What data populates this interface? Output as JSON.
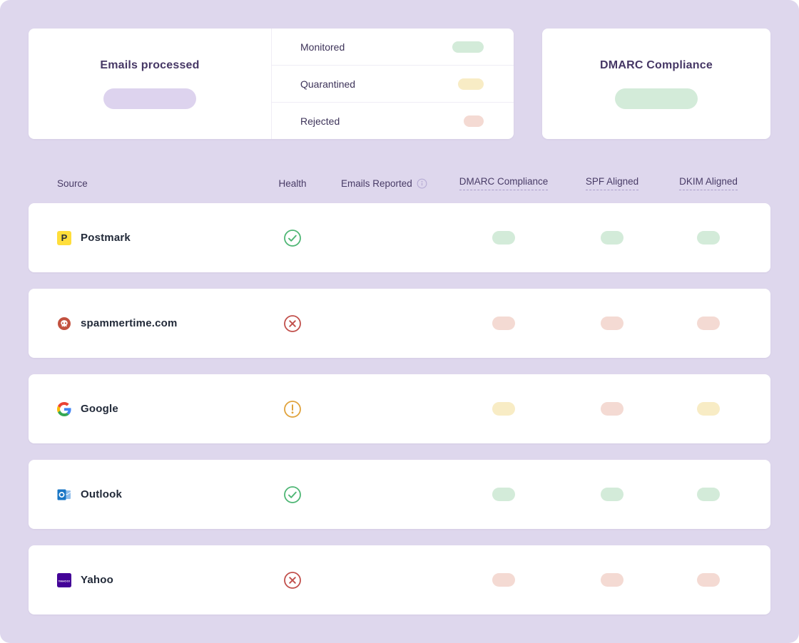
{
  "colors": {
    "background": "#ded7ed",
    "card_background": "#ffffff",
    "title_text": "#463765",
    "header_text": "#483b66",
    "source_text": "#222a39",
    "skeleton_purple": "#ddd3ee",
    "skeleton_green": "#d3ebd9",
    "skeleton_yellow": "#f8ecc5",
    "skeleton_red": "#f4dad3",
    "health_pass": "#4eb674",
    "health_fail": "#c14f4b",
    "health_warn": "#e0a23b"
  },
  "summary": {
    "emails_processed_title": "Emails processed",
    "emails_processed_value": {
      "skeleton": true,
      "color": "purple",
      "width": 130
    },
    "breakdown": [
      {
        "label": "Monitored",
        "color": "green",
        "pill_width": 44
      },
      {
        "label": "Quarantined",
        "color": "yellow",
        "pill_width": 36
      },
      {
        "label": "Rejected",
        "color": "red",
        "pill_width": 28
      }
    ],
    "dmarc_compliance_title": "DMARC Compliance",
    "dmarc_compliance_value": {
      "skeleton": true,
      "color": "green",
      "width": 116
    }
  },
  "table": {
    "headers": [
      {
        "key": "source",
        "label": "Source"
      },
      {
        "key": "health",
        "label": "Health"
      },
      {
        "key": "emails",
        "label": "Emails Reported",
        "info_icon": true
      },
      {
        "key": "dmarc",
        "label": "DMARC Compliance",
        "underlined": true
      },
      {
        "key": "spf",
        "label": "SPF Aligned",
        "underlined": true
      },
      {
        "key": "dkim",
        "label": "DKIM Aligned",
        "underlined": true
      }
    ],
    "rows": [
      {
        "source": "Postmark",
        "icon": "postmark-logo",
        "health": "pass",
        "emails_pill_width": 82,
        "dmarc": "green",
        "spf": "green",
        "dkim": "green"
      },
      {
        "source": "spammertime.com",
        "icon": "spam-skull",
        "health": "fail",
        "emails_pill_width": 82,
        "dmarc": "red",
        "spf": "red",
        "dkim": "red"
      },
      {
        "source": "Google",
        "icon": "google-logo",
        "health": "warn",
        "emails_pill_width": 60,
        "dmarc": "yellow",
        "spf": "red",
        "dkim": "yellow"
      },
      {
        "source": "Outlook",
        "icon": "outlook-logo",
        "health": "pass",
        "emails_pill_width": 38,
        "dmarc": "green",
        "spf": "green",
        "dkim": "green"
      },
      {
        "source": "Yahoo",
        "icon": "yahoo-logo",
        "health": "fail",
        "emails_pill_width": 32,
        "dmarc": "red",
        "spf": "red",
        "dkim": "red"
      }
    ]
  }
}
